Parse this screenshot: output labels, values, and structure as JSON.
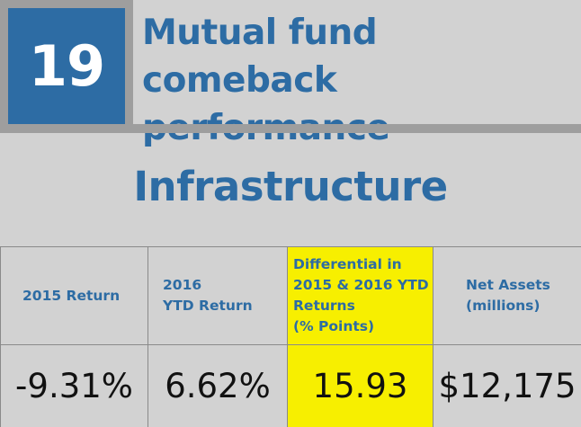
{
  "rank": "19",
  "headline": "Mutual fund comeback performance",
  "section_title": "Infrastructure",
  "table": {
    "headers": [
      "2015 Return",
      "2016\nYTD Return",
      "Differential in\n2015 & 2016 YTD\nReturns\n(% Points)",
      "Net Assets\n(millions)"
    ],
    "values": [
      "-9.31%",
      "6.62%",
      "15.93",
      "$12,175"
    ]
  },
  "colors": {
    "accent": "#2d6ca4",
    "highlight": "#f7ef00",
    "background": "#d2d2d2",
    "frame": "#9e9e9e"
  }
}
